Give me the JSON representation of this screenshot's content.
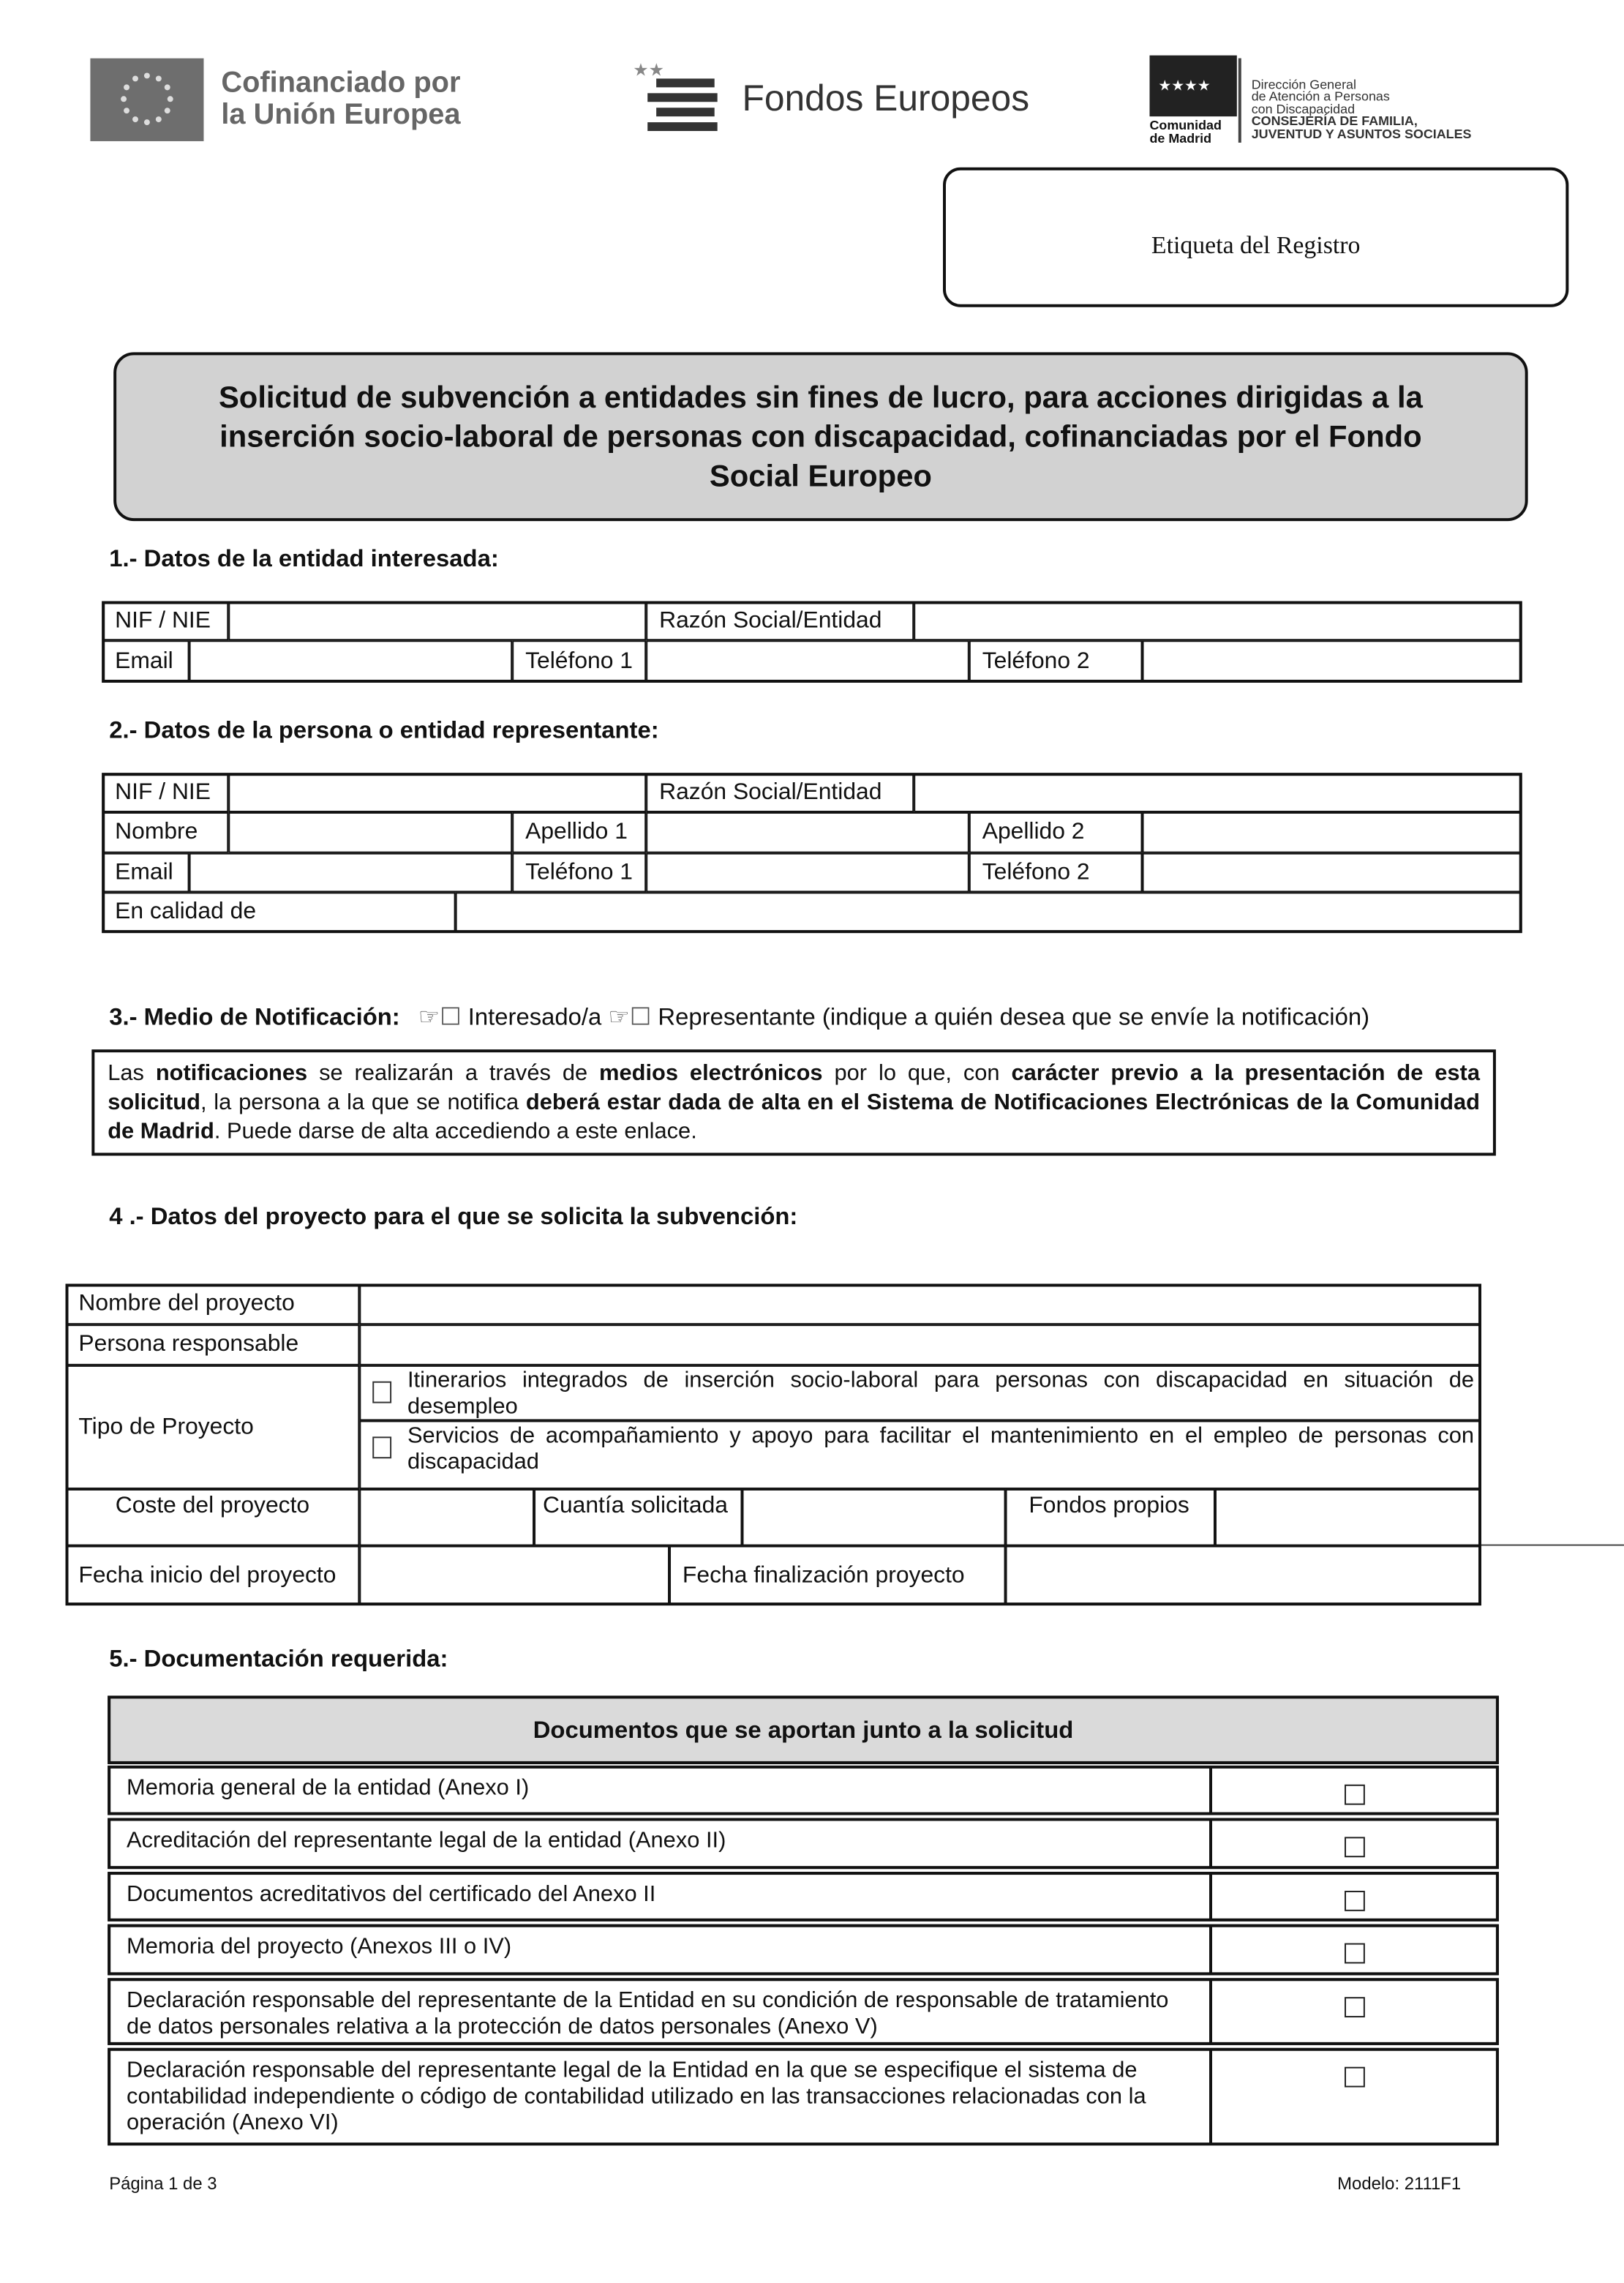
{
  "header": {
    "eu_logo": [
      "Cofinanciado por",
      "la Unión Europea"
    ],
    "fondos_logo": "Fondos Europeos",
    "madrid_logo": {
      "name": [
        "Comunidad",
        "de Madrid"
      ],
      "lines": [
        "Dirección General",
        "de Atención a Personas",
        "con Discapacidad",
        "CONSEJERÍA DE FAMILIA,",
        "JUVENTUD Y ASUNTOS SOCIALES"
      ]
    }
  },
  "registry_label": "Etiqueta del Registro",
  "title": [
    "Solicitud de subvención a entidades sin fines de lucro, para acciones dirigidas a la",
    "inserción socio-laboral de personas con discapacidad, cofinanciadas por el Fondo",
    "Social Europeo"
  ],
  "section1": {
    "heading": "1.- Datos de la entidad interesada:",
    "fields": [
      "NIF / NIE",
      "Razón Social/Entidad",
      "Email",
      "Teléfono 1",
      "Teléfono 2"
    ]
  },
  "section2": {
    "heading": "2.- Datos de la persona o entidad representante:",
    "fields": [
      "NIF / NIE",
      "Razón Social/Entidad",
      "Nombre",
      "Apellido 1",
      "Apellido 2",
      "Email",
      "Teléfono 1",
      "Teléfono 2",
      "En calidad de"
    ]
  },
  "section3": {
    "heading": "3.- Medio de Notificación:",
    "options": [
      "Interesado/a",
      "Representante"
    ],
    "hint": "(indique a quién desea que se envíe la notificación)",
    "notice": [
      {
        "text": "Las ",
        "bold": false
      },
      {
        "text": "notificaciones",
        "bold": true
      },
      {
        "text": " se realizarán a través de ",
        "bold": false
      },
      {
        "text": "medios electrónicos",
        "bold": true
      },
      {
        "text": " por lo que, con ",
        "bold": false
      },
      {
        "text": "carácter previo a la presentación de esta solicitud",
        "bold": true
      },
      {
        "text": ", la persona a la que se notifica ",
        "bold": false
      },
      {
        "text": "deberá estar dada de alta en el Sistema de Notificaciones Electrónicas de la Comunidad de Madrid",
        "bold": true
      },
      {
        "text": ". Puede darse de alta accediendo a este enlace.",
        "bold": false
      }
    ]
  },
  "section4": {
    "heading": "4 .- Datos del proyecto para el que se solicita la subvención:",
    "fields": [
      "Nombre del proyecto",
      "Persona responsable",
      "Tipo de Proyecto",
      "Coste del proyecto",
      "Cuantía solicitada",
      "Fondos propios",
      "Fecha inicio del proyecto",
      "Fecha finalización proyecto"
    ],
    "project_types": [
      "Itinerarios integrados de inserción socio-laboral para personas con discapacidad en situación de desempleo",
      "Servicios de acompañamiento y apoyo para facilitar el mantenimiento en el empleo de personas con discapacidad"
    ]
  },
  "section5": {
    "heading": "5.- Documentación requerida:",
    "table_header": "Documentos que se aportan junto a la solicitud",
    "documents": [
      "Memoria general de la entidad (Anexo I)",
      "Acreditación del representante legal de la entidad (Anexo II)",
      "Documentos acreditativos del certificado del Anexo II",
      "Memoria del proyecto (Anexos III o IV)",
      "Declaración responsable del representante de la Entidad en su condición de responsable de tratamiento de datos personales relativa a la protección de datos personales (Anexo V)",
      "Declaración responsable del representante legal de la Entidad en la que se especifique el sistema de contabilidad independiente o código de contabilidad utilizado en las transacciones relacionadas con la operación (Anexo VI)"
    ]
  },
  "footer": {
    "page": "Página 1 de 3",
    "model": "Modelo: 2111F1"
  }
}
